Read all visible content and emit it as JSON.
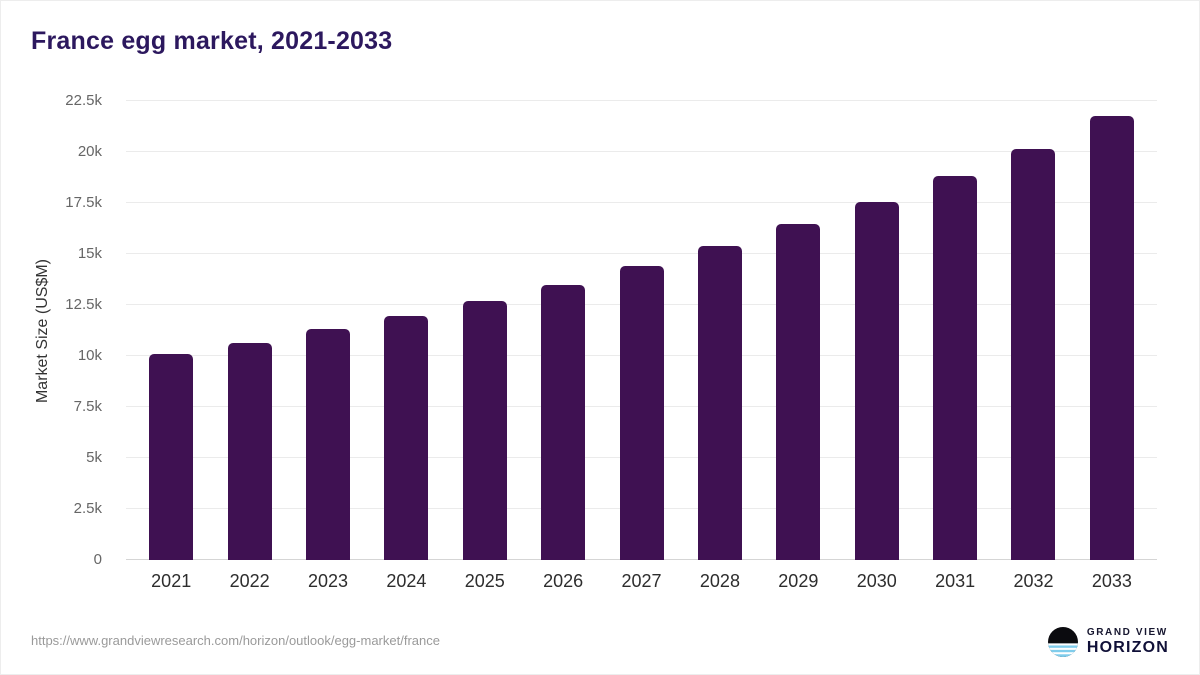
{
  "page": {
    "footer_url": "https://www.grandviewresearch.com/horizon/outlook/egg-market/france",
    "logo": {
      "line1": "GRAND VIEW",
      "line2": "HORIZON"
    }
  },
  "chart_data": {
    "type": "bar",
    "title": "France egg market, 2021-2033",
    "xlabel": "",
    "ylabel": "Market Size (US$M)",
    "categories": [
      "2021",
      "2022",
      "2023",
      "2024",
      "2025",
      "2026",
      "2027",
      "2028",
      "2029",
      "2030",
      "2031",
      "2032",
      "2033"
    ],
    "values": [
      10100,
      10650,
      11300,
      11950,
      12700,
      13500,
      14400,
      15400,
      16450,
      17550,
      18800,
      20150,
      21750
    ],
    "ylim": [
      0,
      22500
    ],
    "yticks": [
      0,
      2500,
      5000,
      7500,
      10000,
      12500,
      15000,
      17500,
      20000,
      22500
    ],
    "ytick_labels": [
      "0",
      "2.5k",
      "5k",
      "7.5k",
      "10k",
      "12.5k",
      "15k",
      "17.5k",
      "20k",
      "22.5k"
    ],
    "grid": true,
    "legend": false
  },
  "colors": {
    "bar": "#3f1152",
    "title": "#2c185e",
    "grid": "#ebebeb",
    "logo_blue": "#7fcdec"
  }
}
